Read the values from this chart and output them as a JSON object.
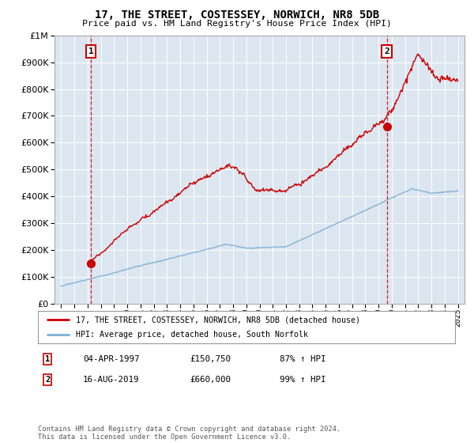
{
  "title": "17, THE STREET, COSTESSEY, NORWICH, NR8 5DB",
  "subtitle": "Price paid vs. HM Land Registry's House Price Index (HPI)",
  "legend_line1": "17, THE STREET, COSTESSEY, NORWICH, NR8 5DB (detached house)",
  "legend_line2": "HPI: Average price, detached house, South Norfolk",
  "sale1_label": "1",
  "sale1_date": "04-APR-1997",
  "sale1_price": "£150,750",
  "sale1_hpi": "87% ↑ HPI",
  "sale1_x": 1997.25,
  "sale1_y": 150750,
  "sale2_label": "2",
  "sale2_date": "16-AUG-2019",
  "sale2_price": "£660,000",
  "sale2_hpi": "99% ↑ HPI",
  "sale2_x": 2019.62,
  "sale2_y": 660000,
  "ylim": [
    0,
    1000000
  ],
  "xlim": [
    1994.5,
    2025.5
  ],
  "plot_bg_color": "#dce6f0",
  "red_line_color": "#cc0000",
  "blue_line_color": "#7bafd4",
  "grid_color": "#ffffff",
  "footnote": "Contains HM Land Registry data © Crown copyright and database right 2024.\nThis data is licensed under the Open Government Licence v3.0."
}
